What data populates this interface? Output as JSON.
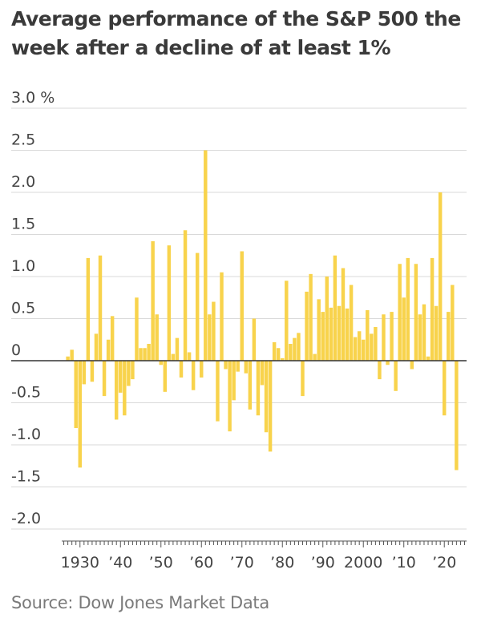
{
  "chart_data": {
    "type": "bar",
    "title": "Average performance of the S&P 500 the week after a decline of at least 1%",
    "source": "Source: Dow Jones Market Data",
    "ylim": [
      -2.0,
      3.0
    ],
    "y_ticks": [
      3.0,
      2.5,
      2.0,
      1.5,
      1.0,
      0.5,
      0,
      -0.5,
      -1.0,
      -1.5,
      -2.0
    ],
    "y_tick_labels": [
      "3.0",
      "2.5",
      "2.0",
      "1.5",
      "1.0",
      "0.5",
      "0",
      "-0.5",
      "-1.0",
      "-1.5",
      "-2.0"
    ],
    "y_unit": "%",
    "x_tick_labels": [
      {
        "year": 1930,
        "label": "1930"
      },
      {
        "year": 1940,
        "label": "’40"
      },
      {
        "year": 1950,
        "label": "’50"
      },
      {
        "year": 1960,
        "label": "’60"
      },
      {
        "year": 1970,
        "label": "’70"
      },
      {
        "year": 1980,
        "label": "’80"
      },
      {
        "year": 1990,
        "label": "’90"
      },
      {
        "year": 2000,
        "label": "2000"
      },
      {
        "year": 2010,
        "label": "’10"
      },
      {
        "year": 2020,
        "label": "’20"
      }
    ],
    "grid": true,
    "bar_color": "#f8d34c",
    "x": [
      1927,
      1928,
      1929,
      1930,
      1931,
      1932,
      1933,
      1934,
      1935,
      1936,
      1937,
      1938,
      1939,
      1940,
      1941,
      1942,
      1943,
      1944,
      1945,
      1946,
      1947,
      1948,
      1949,
      1950,
      1951,
      1952,
      1953,
      1954,
      1955,
      1956,
      1957,
      1958,
      1959,
      1960,
      1961,
      1962,
      1963,
      1964,
      1965,
      1966,
      1967,
      1968,
      1969,
      1970,
      1971,
      1972,
      1973,
      1974,
      1975,
      1976,
      1977,
      1978,
      1979,
      1980,
      1981,
      1982,
      1983,
      1984,
      1985,
      1986,
      1987,
      1988,
      1989,
      1990,
      1991,
      1992,
      1993,
      1994,
      1995,
      1996,
      1997,
      1998,
      1999,
      2000,
      2001,
      2002,
      2003,
      2004,
      2005,
      2006,
      2007,
      2008,
      2009,
      2010,
      2011,
      2012,
      2013,
      2014,
      2015,
      2016,
      2017,
      2018,
      2019,
      2020,
      2021,
      2022,
      2023,
      2024
    ],
    "values": [
      0.05,
      0.13,
      -0.8,
      -1.27,
      -0.28,
      1.22,
      -0.25,
      0.32,
      1.25,
      -0.42,
      0.25,
      0.53,
      -0.7,
      -0.38,
      -0.65,
      -0.3,
      -0.22,
      0.75,
      0.15,
      0.15,
      0.2,
      1.42,
      0.55,
      -0.05,
      -0.37,
      1.37,
      0.08,
      0.27,
      -0.2,
      1.55,
      0.1,
      -0.35,
      1.28,
      -0.2,
      2.5,
      0.55,
      0.7,
      -0.72,
      1.05,
      -0.1,
      -0.84,
      -0.47,
      -0.13,
      1.3,
      -0.15,
      -0.58,
      0.5,
      -0.65,
      -0.29,
      -0.85,
      -1.08,
      0.22,
      0.15,
      0.03,
      0.95,
      0.2,
      0.27,
      0.33,
      -0.42,
      0.82,
      1.03,
      0.08,
      0.73,
      0.58,
      1.0,
      0.63,
      1.25,
      0.65,
      1.1,
      0.62,
      0.9,
      0.28,
      0.35,
      0.25,
      0.6,
      0.32,
      0.4,
      -0.22,
      0.55,
      -0.05,
      0.58,
      -0.36,
      1.15,
      0.75,
      1.22,
      -0.1,
      1.15,
      0.55,
      0.67,
      0.05,
      1.22,
      0.65,
      2.0,
      -0.65,
      0.58,
      0.9,
      -1.3,
      0.0
    ]
  }
}
